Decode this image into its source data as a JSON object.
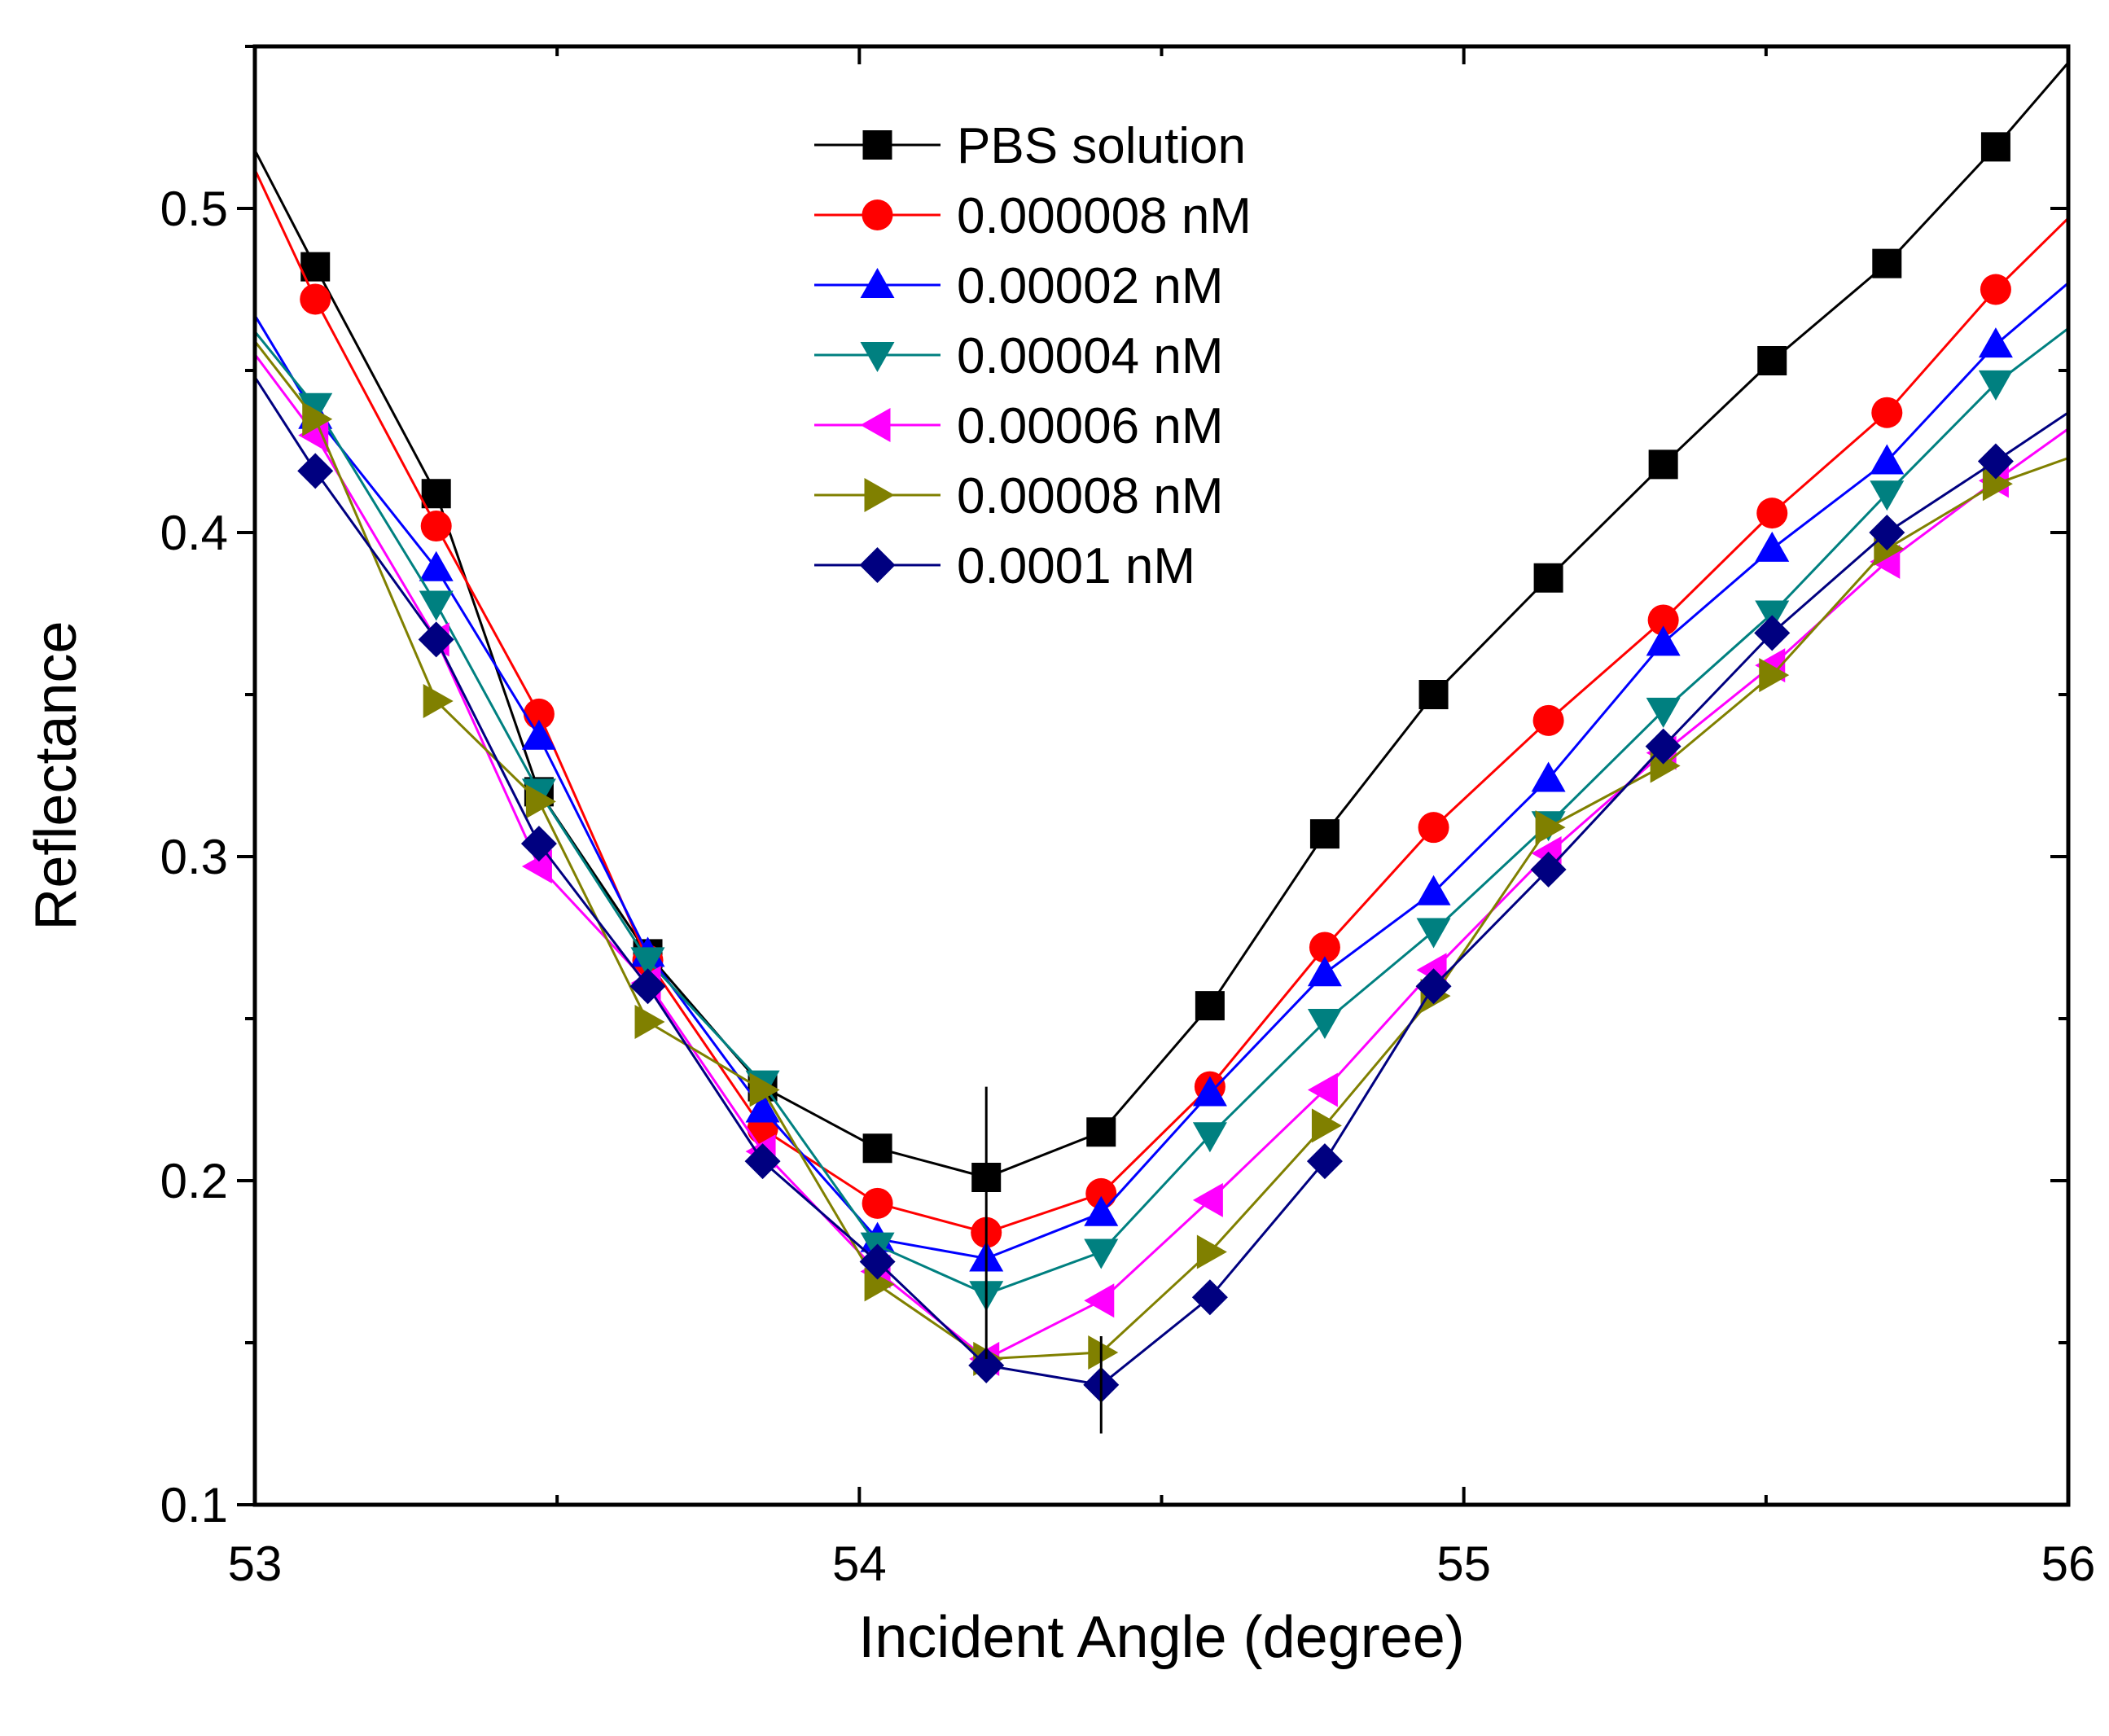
{
  "chart_data": {
    "type": "line",
    "title": "",
    "xlabel": "Incident Angle (degree)",
    "ylabel": "Reflectance",
    "xlim": [
      53,
      56
    ],
    "ylim": [
      0.1,
      0.55
    ],
    "x_ticks": [
      53,
      54,
      55,
      56
    ],
    "x_tick_labels": [
      "53",
      "54",
      "55",
      "56"
    ],
    "y_ticks": [
      0.1,
      0.2,
      0.3,
      0.4,
      0.5
    ],
    "y_tick_labels": [
      "0.1",
      "0.2",
      "0.3",
      "0.4",
      "0.5"
    ],
    "grid": false,
    "legend_position": "top-center",
    "x": [
      53.1,
      53.3,
      53.47,
      53.65,
      53.84,
      54.03,
      54.21,
      54.4,
      54.58,
      54.77,
      54.95,
      55.14,
      55.33,
      55.51,
      55.7,
      55.88
    ],
    "series": [
      {
        "name": "PBS solution",
        "color": "#000000",
        "marker": "square",
        "start": [
          53.0,
          0.518
        ],
        "end": [
          56.0,
          0.545
        ],
        "values": [
          0.482,
          0.412,
          0.32,
          0.27,
          0.229,
          0.21,
          0.201,
          0.215,
          0.254,
          0.307,
          0.35,
          0.386,
          0.421,
          0.453,
          0.483,
          0.519
        ]
      },
      {
        "name": "0.000008 nM",
        "color": "#ff0000",
        "marker": "circle",
        "start": [
          53.0,
          0.512
        ],
        "end": [
          56.0,
          0.497
        ],
        "values": [
          0.472,
          0.402,
          0.344,
          0.268,
          0.216,
          0.193,
          0.184,
          0.196,
          0.229,
          0.272,
          0.309,
          0.342,
          0.373,
          0.406,
          0.437,
          0.475
        ]
      },
      {
        "name": "0.00002 nM",
        "color": "#0000ff",
        "marker": "triangle-up",
        "start": [
          53.0,
          0.467
        ],
        "end": [
          56.0,
          0.477
        ],
        "values": [
          0.436,
          0.389,
          0.337,
          0.27,
          0.222,
          0.182,
          0.176,
          0.19,
          0.227,
          0.264,
          0.289,
          0.324,
          0.366,
          0.395,
          0.422,
          0.458
        ]
      },
      {
        "name": "0.00004 nM",
        "color": "#008080",
        "marker": "triangle-down",
        "start": [
          53.0,
          0.462
        ],
        "end": [
          56.0,
          0.463
        ],
        "values": [
          0.439,
          0.378,
          0.32,
          0.268,
          0.23,
          0.18,
          0.165,
          0.178,
          0.214,
          0.249,
          0.277,
          0.31,
          0.345,
          0.375,
          0.412,
          0.446
        ]
      },
      {
        "name": "0.00006 nM",
        "color": "#ff00ff",
        "marker": "triangle-left",
        "start": [
          53.0,
          0.455
        ],
        "end": [
          56.0,
          0.432
        ],
        "values": [
          0.43,
          0.367,
          0.297,
          0.261,
          0.209,
          0.172,
          0.145,
          0.163,
          0.194,
          0.228,
          0.265,
          0.301,
          0.332,
          0.359,
          0.391,
          0.416
        ]
      },
      {
        "name": "0.00008 nM",
        "color": "#808000",
        "marker": "triangle-right",
        "start": [
          53.0,
          0.459
        ],
        "end": [
          56.0,
          0.423
        ],
        "values": [
          0.435,
          0.348,
          0.317,
          0.249,
          0.228,
          0.168,
          0.145,
          0.147,
          0.178,
          0.217,
          0.257,
          0.309,
          0.328,
          0.356,
          0.395,
          0.415
        ]
      },
      {
        "name": "0.0001 nM",
        "color": "#000080",
        "marker": "diamond",
        "start": [
          53.0,
          0.448
        ],
        "end": [
          56.0,
          0.437
        ],
        "values": [
          0.419,
          0.367,
          0.304,
          0.26,
          0.206,
          0.175,
          0.143,
          0.137,
          0.164,
          0.206,
          0.26,
          0.296,
          0.334,
          0.369,
          0.4,
          0.422
        ]
      }
    ],
    "vertical_markers": [
      {
        "x": 54.21,
        "range": [
          0.145,
          0.229
        ]
      },
      {
        "x": 54.4,
        "range": [
          0.122,
          0.152
        ]
      }
    ]
  }
}
